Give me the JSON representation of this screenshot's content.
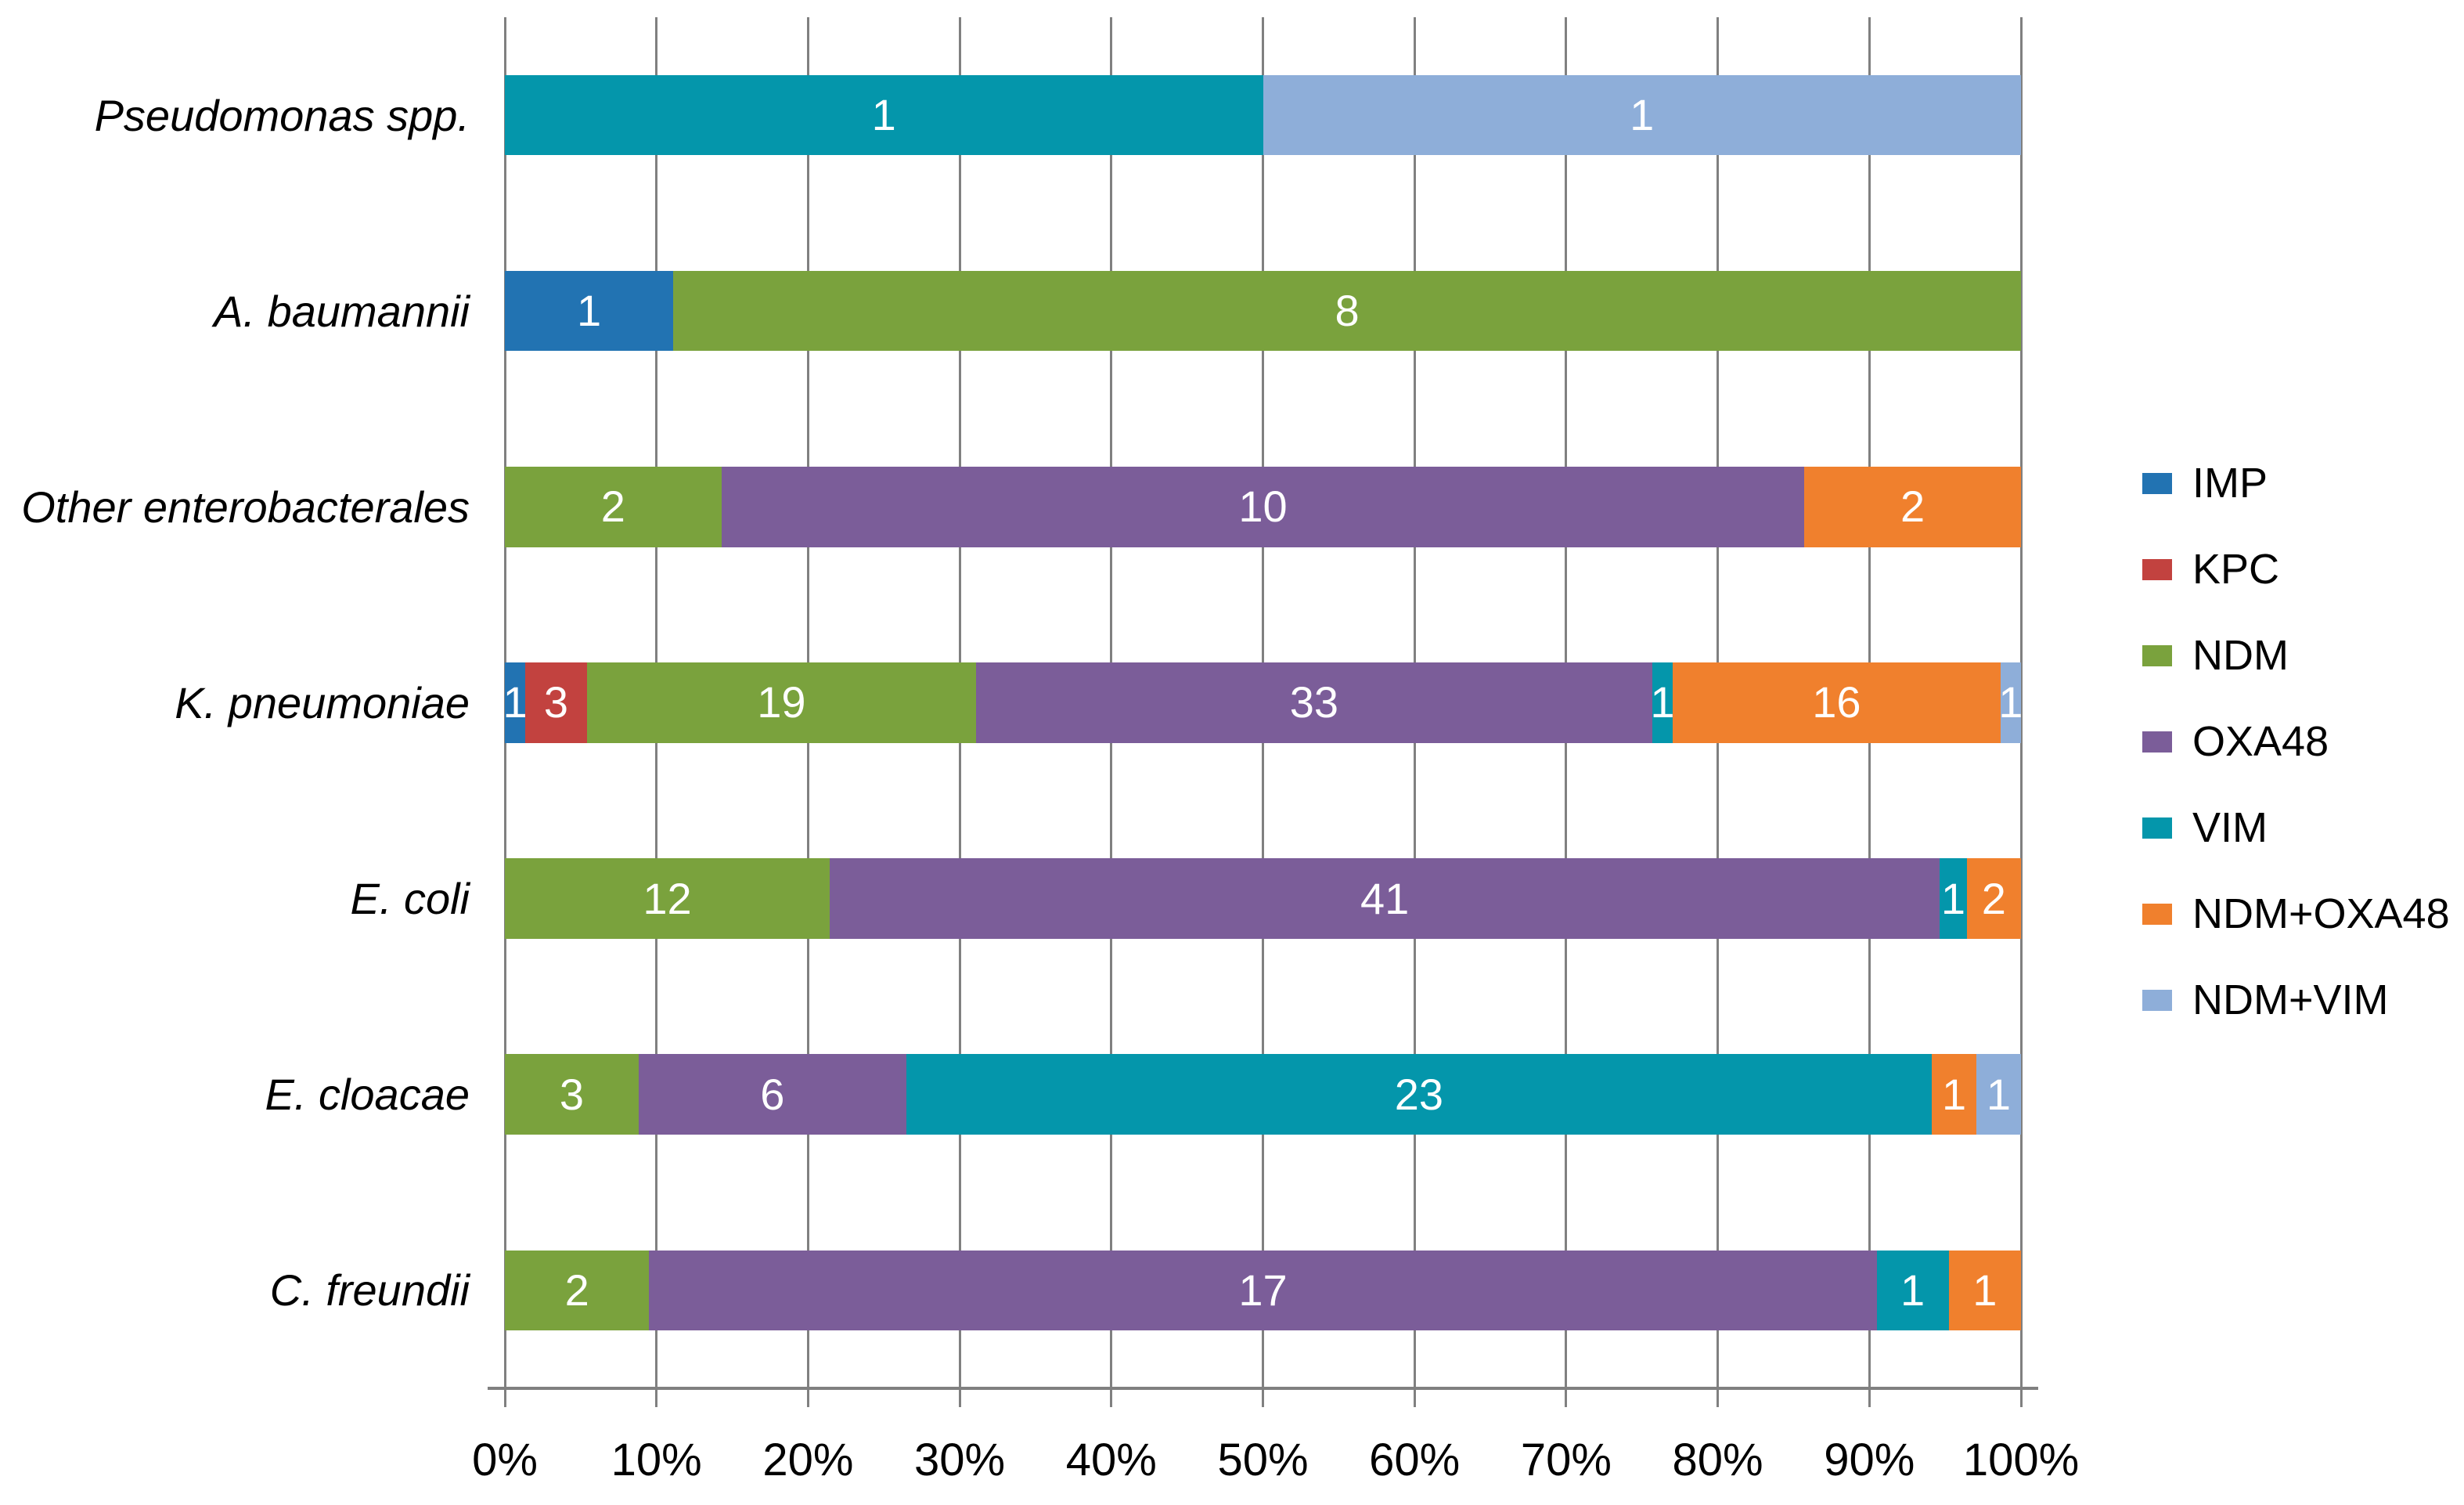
{
  "chart_data": {
    "type": "bar",
    "orientation": "horizontal",
    "stacked": true,
    "normalized": "each bar scaled to 100% of row total",
    "title": "",
    "xlabel": "",
    "ylabel": "",
    "categories": [
      "Pseudomonas spp.",
      "A. baumannii",
      "Other enterobacterales",
      "K. pneumoniae",
      "E. coli",
      "E. cloacae",
      "C. freundii"
    ],
    "series": [
      {
        "name": "IMP",
        "color": "#2273B2",
        "values": [
          0,
          1,
          0,
          1,
          0,
          0,
          0
        ]
      },
      {
        "name": "KPC",
        "color": "#C2423F",
        "values": [
          0,
          0,
          0,
          3,
          0,
          0,
          0
        ]
      },
      {
        "name": "NDM",
        "color": "#7AA23D",
        "values": [
          0,
          8,
          2,
          19,
          12,
          3,
          2
        ]
      },
      {
        "name": "OXA48",
        "color": "#7B5D99",
        "values": [
          0,
          0,
          10,
          33,
          41,
          6,
          17
        ]
      },
      {
        "name": "VIM",
        "color": "#0496AB",
        "values": [
          1,
          0,
          0,
          1,
          1,
          23,
          1
        ]
      },
      {
        "name": "NDM+OXA48",
        "color": "#F0802D",
        "values": [
          0,
          0,
          2,
          16,
          2,
          1,
          1
        ]
      },
      {
        "name": "NDM+VIM",
        "color": "#8EAED9",
        "values": [
          1,
          0,
          0,
          1,
          0,
          1,
          0
        ]
      }
    ],
    "row_totals": [
      2,
      9,
      14,
      74,
      56,
      34,
      21
    ],
    "x_axis": {
      "min": 0,
      "max": 100,
      "tick_labels": [
        "0%",
        "10%",
        "20%",
        "30%",
        "40%",
        "50%",
        "60%",
        "70%",
        "80%",
        "90%",
        "100%"
      ]
    },
    "grid": true,
    "legend_position": "right",
    "bar_value_labels": "raw counts, white, centered in each segment"
  },
  "styles": {
    "background": "#FFFFFF",
    "gridline_color": "#808080",
    "axis_color": "#808080",
    "text_color": "#000000",
    "bar_label_color": "#FFFFFF"
  }
}
